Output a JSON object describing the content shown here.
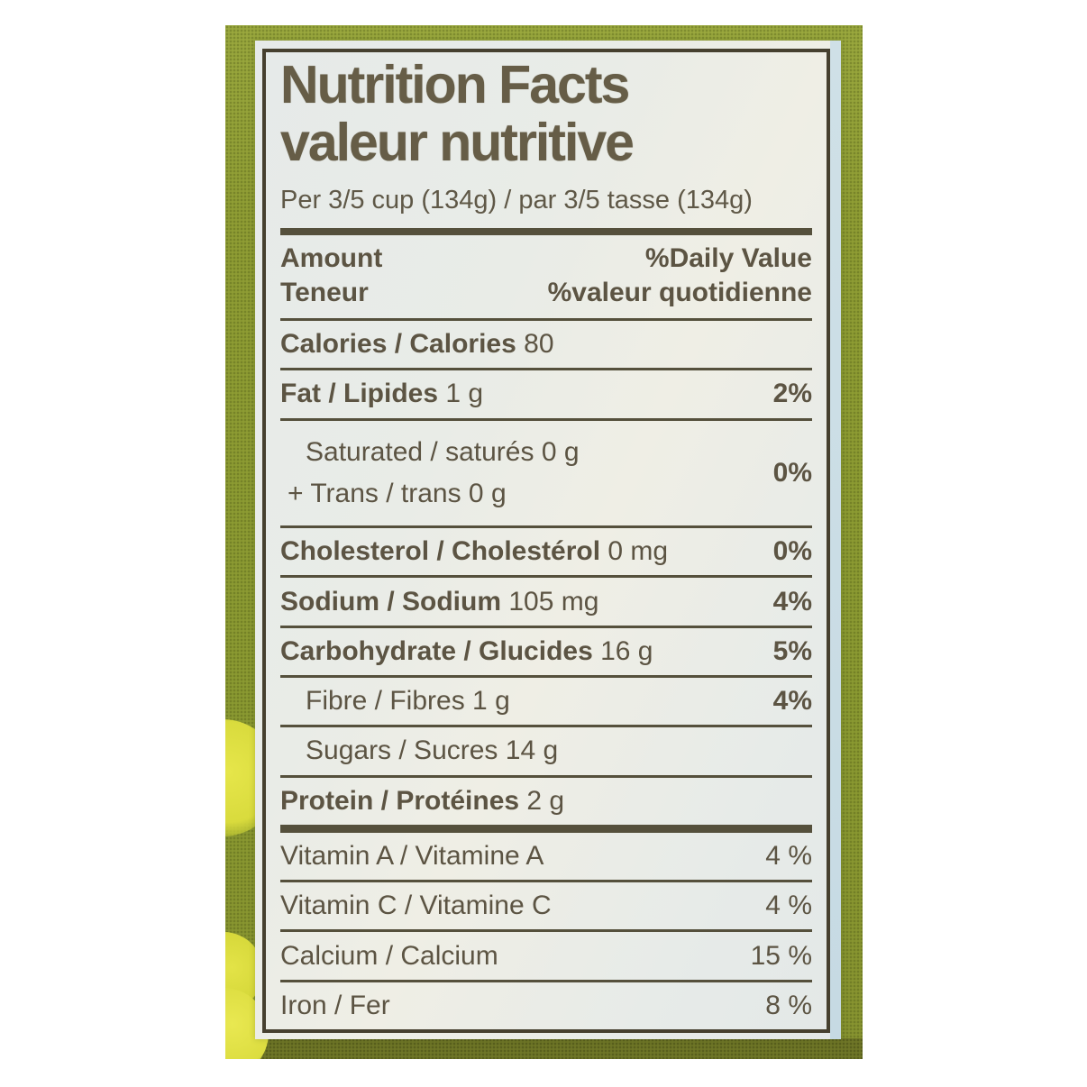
{
  "label": {
    "title_en": "Nutrition Facts",
    "title_fr": "valeur nutritive",
    "serving": "Per 3/5 cup (134g) / par 3/5 tasse (134g)",
    "header": {
      "amount_en": "Amount",
      "amount_fr": "Teneur",
      "dv_en": "%Daily Value",
      "dv_fr": "%valeur quotidienne"
    },
    "rows": [
      {
        "name": "Calories / Calories",
        "value": "80",
        "pct": "",
        "bold": true
      },
      {
        "name": "Fat / Lipides",
        "value": "1 g",
        "pct": "2%",
        "bold": true
      },
      {
        "lines": [
          {
            "name": "Saturated / saturés",
            "value": "0 g",
            "indent": 28
          },
          {
            "name": "+ Trans / trans",
            "value": "0 g",
            "indent": 8
          }
        ],
        "pct": "0%",
        "tall": true
      },
      {
        "name": "Cholesterol / Cholestérol",
        "value": "0 mg",
        "pct": "0%",
        "bold": true
      },
      {
        "name": "Sodium / Sodium",
        "value": "105 mg",
        "pct": "4%",
        "bold": true
      },
      {
        "name": "Carbohydrate / Glucides",
        "value": "16 g",
        "pct": "5%",
        "bold": true
      },
      {
        "name": "Fibre / Fibres",
        "value": "1 g",
        "pct": "4%",
        "indent": 28
      },
      {
        "name": "Sugars / Sucres",
        "value": "14 g",
        "pct": "",
        "indent": 28
      },
      {
        "name": "Protein / Protéines",
        "value": "2 g",
        "pct": "",
        "bold": true
      },
      {
        "name": "Vitamin A / Vitamine A",
        "value": "",
        "pct": "4 %",
        "vitamin": true,
        "thick_rule_above": true
      },
      {
        "name": "Vitamin C / Vitamine C",
        "value": "",
        "pct": "4 %",
        "vitamin": true
      },
      {
        "name": "Calcium / Calcium",
        "value": "",
        "pct": "15 %",
        "vitamin": true
      },
      {
        "name": "Iron / Fer",
        "value": "",
        "pct": "8 %",
        "vitamin": true
      }
    ]
  },
  "colors": {
    "green": "#93a138",
    "green-dark": "#6f7627",
    "paper": "#e9ece8",
    "paper-edge-blue": "#cbdde5",
    "ink": "#5c5443",
    "rule": "#55503c",
    "rule-dark": "#46402f",
    "blob-yellow": "#dfe041"
  }
}
